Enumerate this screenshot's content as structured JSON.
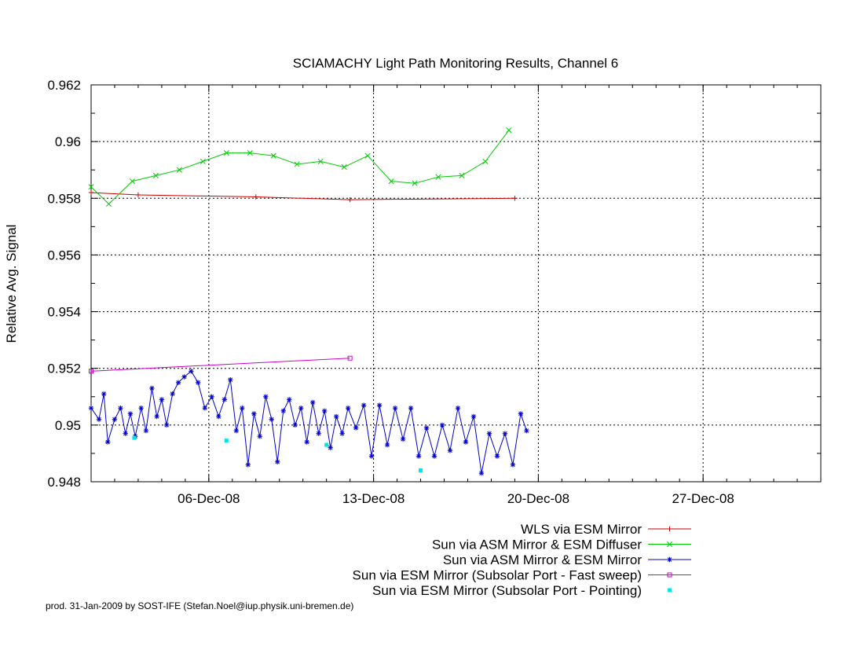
{
  "chart_data": {
    "type": "line",
    "title": "SCIAMACHY Light Path Monitoring Results, Channel 6",
    "xlabel": "",
    "ylabel": "Relative Avg. Signal",
    "xlim": [
      "2008-12-01",
      "2009-01-01"
    ],
    "ylim": [
      0.948,
      0.962
    ],
    "x_ticks": [
      {
        "date": "2008-12-06",
        "label": "06-Dec-08"
      },
      {
        "date": "2008-12-13",
        "label": "13-Dec-08"
      },
      {
        "date": "2008-12-20",
        "label": "20-Dec-08"
      },
      {
        "date": "2008-12-27",
        "label": "27-Dec-08"
      }
    ],
    "y_ticks": [
      {
        "value": 0.948,
        "label": "0.948"
      },
      {
        "value": 0.95,
        "label": "0.95"
      },
      {
        "value": 0.952,
        "label": "0.952"
      },
      {
        "value": 0.954,
        "label": "0.954"
      },
      {
        "value": 0.956,
        "label": "0.956"
      },
      {
        "value": 0.958,
        "label": "0.958"
      },
      {
        "value": 0.96,
        "label": "0.96"
      },
      {
        "value": 0.962,
        "label": "0.962"
      }
    ],
    "grid": true,
    "legend_position": "bottom-right",
    "series": [
      {
        "name": "WLS via ESM Mirror",
        "color": "#cc0000",
        "marker": "plus",
        "line": true,
        "points": [
          [
            "2008-12-01 00:00",
            0.9582
          ],
          [
            "2008-12-03 00:00",
            0.95812
          ],
          [
            "2008-12-08 00:00",
            0.95805
          ],
          [
            "2008-12-12 00:00",
            0.95795
          ],
          [
            "2008-12-19 00:00",
            0.958
          ]
        ]
      },
      {
        "name": "Sun via ASM Mirror & ESM Diffuser",
        "color": "#00cc00",
        "marker": "cross",
        "line": true,
        "points": [
          [
            "2008-12-01 00:00",
            0.9584
          ],
          [
            "2008-12-01 18:00",
            0.9578
          ],
          [
            "2008-12-02 18:00",
            0.9586
          ],
          [
            "2008-12-03 18:00",
            0.9588
          ],
          [
            "2008-12-04 18:00",
            0.959
          ],
          [
            "2008-12-05 18:00",
            0.9593
          ],
          [
            "2008-12-06 18:00",
            0.9596
          ],
          [
            "2008-12-07 18:00",
            0.9596
          ],
          [
            "2008-12-08 18:00",
            0.9595
          ],
          [
            "2008-12-09 18:00",
            0.9592
          ],
          [
            "2008-12-10 18:00",
            0.9593
          ],
          [
            "2008-12-11 18:00",
            0.9591
          ],
          [
            "2008-12-12 18:00",
            0.9595
          ],
          [
            "2008-12-13 18:00",
            0.9586
          ],
          [
            "2008-12-14 18:00",
            0.95853
          ],
          [
            "2008-12-15 18:00",
            0.95875
          ],
          [
            "2008-12-16 18:00",
            0.9588
          ],
          [
            "2008-12-17 18:00",
            0.9593
          ],
          [
            "2008-12-18 18:00",
            0.9604
          ]
        ]
      },
      {
        "name": "Sun via ASM Mirror & ESM Mirror",
        "color": "#0000cc",
        "marker": "star",
        "line": true,
        "points": [
          [
            "2008-12-01 00:00",
            0.9506
          ],
          [
            "2008-12-01 08:00",
            0.9502
          ],
          [
            "2008-12-01 13:00",
            0.9511
          ],
          [
            "2008-12-01 17:00",
            0.9494
          ],
          [
            "2008-12-02 00:00",
            0.9502
          ],
          [
            "2008-12-02 06:00",
            0.9506
          ],
          [
            "2008-12-02 11:00",
            0.9497
          ],
          [
            "2008-12-02 16:00",
            0.9504
          ],
          [
            "2008-12-02 21:00",
            0.9496
          ],
          [
            "2008-12-03 03:00",
            0.9506
          ],
          [
            "2008-12-03 08:00",
            0.9498
          ],
          [
            "2008-12-03 14:00",
            0.9513
          ],
          [
            "2008-12-03 19:00",
            0.9503
          ],
          [
            "2008-12-04 00:00",
            0.9509
          ],
          [
            "2008-12-04 05:00",
            0.95
          ],
          [
            "2008-12-04 11:00",
            0.9511
          ],
          [
            "2008-12-04 17:00",
            0.9515
          ],
          [
            "2008-12-04 23:00",
            0.9517
          ],
          [
            "2008-12-05 06:00",
            0.9519
          ],
          [
            "2008-12-05 13:00",
            0.9515
          ],
          [
            "2008-12-05 20:00",
            0.9506
          ],
          [
            "2008-12-06 03:00",
            0.951
          ],
          [
            "2008-12-06 10:00",
            0.9503
          ],
          [
            "2008-12-06 16:00",
            0.9509
          ],
          [
            "2008-12-06 22:00",
            0.9516
          ],
          [
            "2008-12-07 04:00",
            0.9498
          ],
          [
            "2008-12-07 10:00",
            0.9506
          ],
          [
            "2008-12-07 16:00",
            0.9486
          ],
          [
            "2008-12-07 22:00",
            0.9504
          ],
          [
            "2008-12-08 04:00",
            0.9496
          ],
          [
            "2008-12-08 10:00",
            0.951
          ],
          [
            "2008-12-08 16:00",
            0.9502
          ],
          [
            "2008-12-08 22:00",
            0.9487
          ],
          [
            "2008-12-09 04:00",
            0.9505
          ],
          [
            "2008-12-09 10:00",
            0.9509
          ],
          [
            "2008-12-09 16:00",
            0.95
          ],
          [
            "2008-12-09 22:00",
            0.9506
          ],
          [
            "2008-12-10 04:00",
            0.9494
          ],
          [
            "2008-12-10 10:00",
            0.9508
          ],
          [
            "2008-12-10 16:00",
            0.9497
          ],
          [
            "2008-12-10 22:00",
            0.9505
          ],
          [
            "2008-12-11 04:00",
            0.9492
          ],
          [
            "2008-12-11 10:00",
            0.9503
          ],
          [
            "2008-12-11 16:00",
            0.9497
          ],
          [
            "2008-12-11 22:00",
            0.9506
          ],
          [
            "2008-12-12 06:00",
            0.9499
          ],
          [
            "2008-12-12 14:00",
            0.9507
          ],
          [
            "2008-12-12 22:00",
            0.9489
          ],
          [
            "2008-12-13 06:00",
            0.9507
          ],
          [
            "2008-12-13 14:00",
            0.9493
          ],
          [
            "2008-12-13 22:00",
            0.9506
          ],
          [
            "2008-12-14 06:00",
            0.9495
          ],
          [
            "2008-12-14 14:00",
            0.9506
          ],
          [
            "2008-12-14 22:00",
            0.9489
          ],
          [
            "2008-12-15 06:00",
            0.9499
          ],
          [
            "2008-12-15 14:00",
            0.9489
          ],
          [
            "2008-12-15 22:00",
            0.95
          ],
          [
            "2008-12-16 06:00",
            0.9491
          ],
          [
            "2008-12-16 14:00",
            0.9506
          ],
          [
            "2008-12-16 22:00",
            0.9494
          ],
          [
            "2008-12-17 06:00",
            0.9503
          ],
          [
            "2008-12-17 14:00",
            0.9483
          ],
          [
            "2008-12-17 22:00",
            0.9497
          ],
          [
            "2008-12-18 06:00",
            0.9489
          ],
          [
            "2008-12-18 14:00",
            0.9497
          ],
          [
            "2008-12-18 22:00",
            0.9486
          ],
          [
            "2008-12-19 06:00",
            0.9504
          ],
          [
            "2008-12-19 12:00",
            0.9498
          ]
        ]
      },
      {
        "name": "Sun via ESM Mirror (Subsolar Port - Fast sweep)",
        "color": "#cc00cc",
        "marker": "square",
        "line": true,
        "points": [
          [
            "2008-12-01 00:00",
            0.9519
          ],
          [
            "2008-12-12 00:00",
            0.95236
          ]
        ]
      },
      {
        "name": "Sun via ESM Mirror (Subsolar Port - Pointing)",
        "color": "#00e5e5",
        "marker": "filled-square",
        "line": false,
        "points": [
          [
            "2008-12-02 20:00",
            0.94955
          ],
          [
            "2008-12-06 18:00",
            0.94945
          ],
          [
            "2008-12-11 00:00",
            0.9493
          ],
          [
            "2008-12-15 00:00",
            0.9484
          ]
        ]
      }
    ]
  },
  "footer": "prod. 31-Jan-2009 by SOST-IFE (Stefan.Noel@iup.physik.uni-bremen.de)"
}
